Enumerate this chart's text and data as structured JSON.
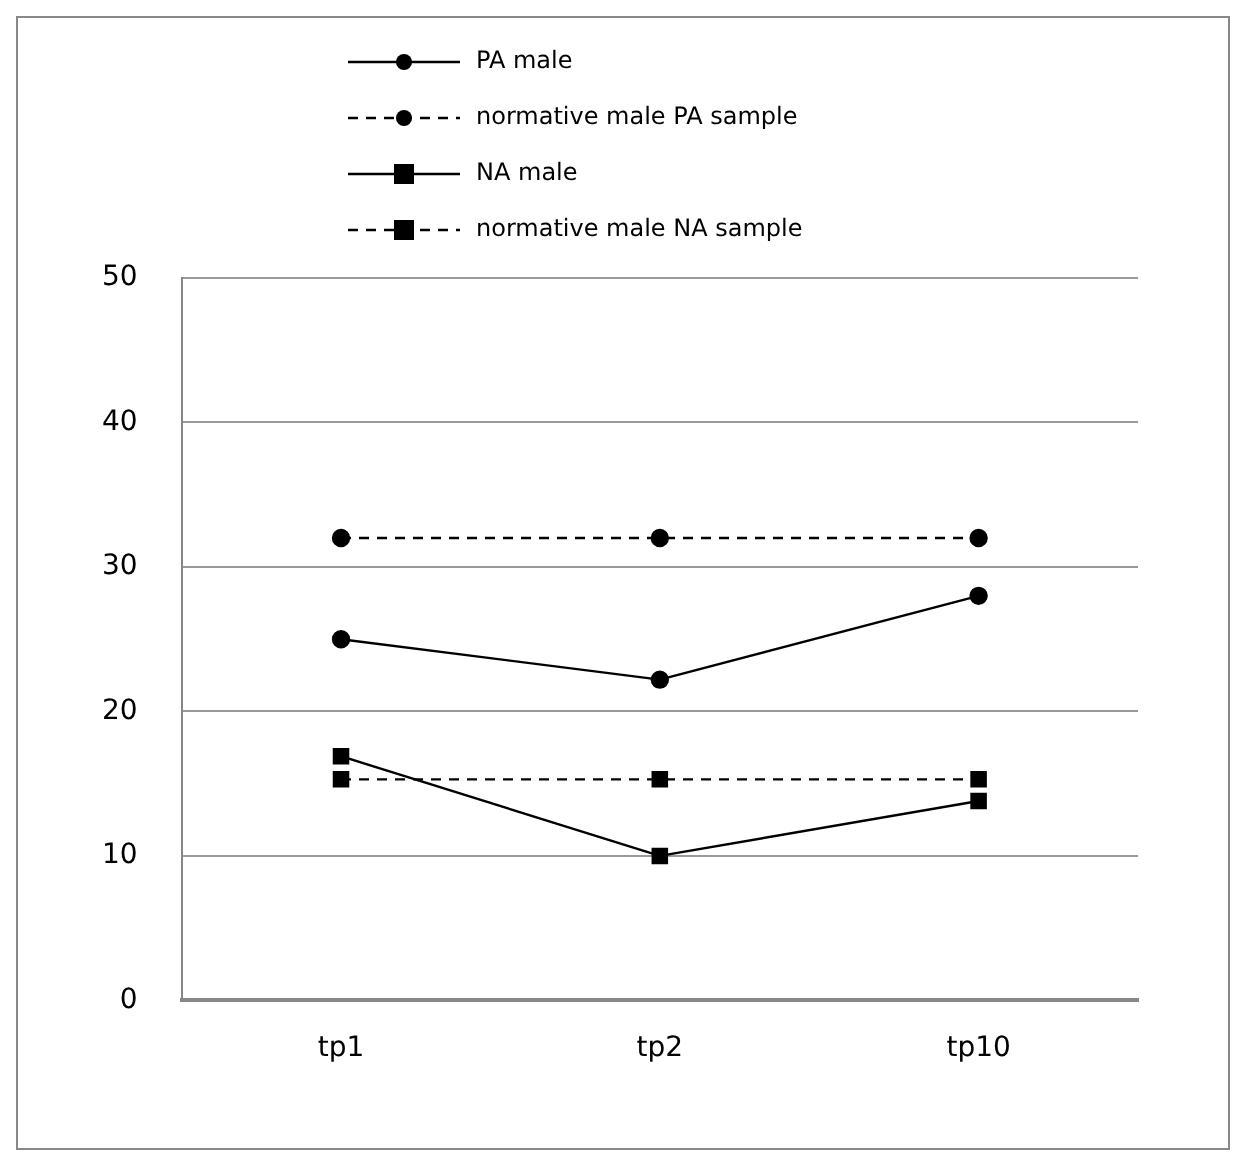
{
  "chart_data": {
    "type": "line",
    "categories": [
      "tp1",
      "tp2",
      "tp10"
    ],
    "ylim": [
      0,
      50
    ],
    "yticks": [
      0,
      10,
      20,
      30,
      40,
      50
    ],
    "grid": "y",
    "legend": "top",
    "series": [
      {
        "name": "PA male",
        "color": "#000000",
        "values": [
          25,
          22.2,
          28
        ],
        "marker": "circle",
        "line_style": "solid"
      },
      {
        "name": "normative male PA sample",
        "color": "#000000",
        "values": [
          32,
          32,
          32
        ],
        "marker": "circle",
        "line_style": "dashed"
      },
      {
        "name": "NA male",
        "color": "#000000",
        "values": [
          16.9,
          10,
          13.8
        ],
        "marker": "square",
        "line_style": "solid"
      },
      {
        "name": "normative male NA sample",
        "color": "#000000",
        "values": [
          15.3,
          15.3,
          15.3
        ],
        "marker": "square",
        "line_style": "dashed"
      }
    ]
  }
}
